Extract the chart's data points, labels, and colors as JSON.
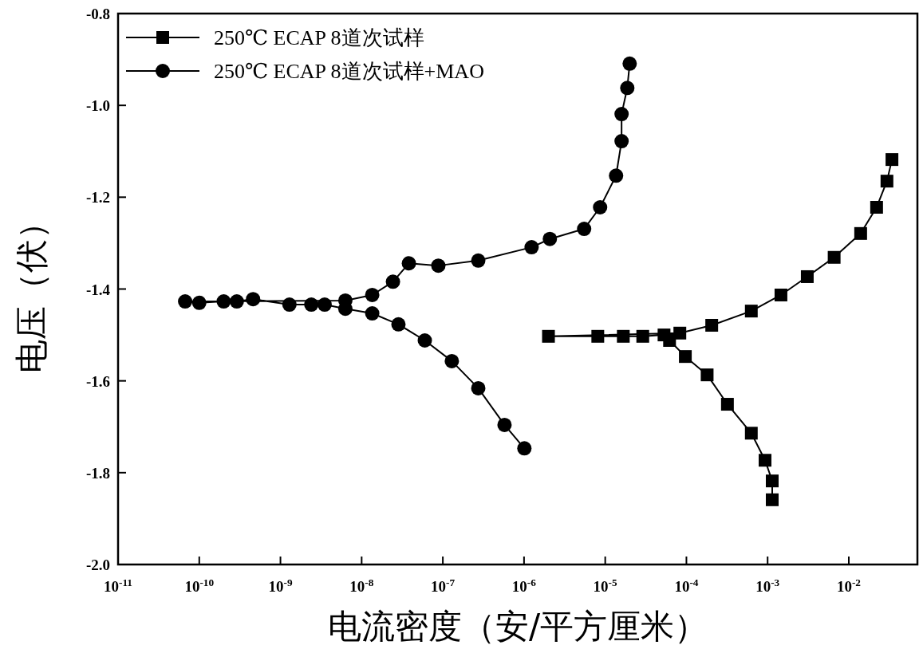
{
  "chart_data": {
    "type": "line",
    "xlabel": "电流密度（安/平方厘米）",
    "ylabel": "电压（伏）",
    "log": "x",
    "legend": "top left",
    "line_style": "solid",
    "xlim": [
      1e-11,
      0.07
    ],
    "ylim": [
      -2.0,
      -0.8
    ],
    "xticks": [
      {
        "value": 1e-11,
        "label": "10$^{-11}$"
      },
      {
        "value": 1e-10,
        "label": "10$^{-10}$"
      },
      {
        "value": 1e-09,
        "label": "10$^{-9}$"
      },
      {
        "value": 1e-08,
        "label": "10$^{-8}$"
      },
      {
        "value": 1e-07,
        "label": "10$^{-7}$"
      },
      {
        "value": 1e-06,
        "label": "10$^{-6}$"
      },
      {
        "value": 1e-05,
        "label": "10$^{-5}$"
      },
      {
        "value": 0.0001,
        "label": "10$^{-4}$"
      },
      {
        "value": 0.001,
        "label": "10$^{-3}$"
      },
      {
        "value": 0.01,
        "label": "10$^{-2}$"
      }
    ],
    "yticks": [
      {
        "value": -2.0,
        "label": "-2.0"
      },
      {
        "value": -1.8,
        "label": "-1.8"
      },
      {
        "value": -1.6,
        "label": "-1.6"
      },
      {
        "value": -1.4,
        "label": "-1.4"
      },
      {
        "value": -1.2,
        "label": "-1.2"
      },
      {
        "value": -1.0,
        "label": "-1.0"
      },
      {
        "value": -0.8,
        "label": "-0.8"
      }
    ],
    "series": [
      {
        "name": "250℃ ECAP 8道次试样",
        "color": "#000000",
        "marker": "square",
        "x": [
          0.00114,
          0.00114,
          0.00093,
          0.00063,
          0.00032,
          0.00018,
          9.7e-05,
          6.2e-05,
          5.3e-05,
          2.9e-05,
          1.67e-05,
          8.1e-06,
          2e-06,
          8.3e-05,
          0.000205,
          0.00063,
          0.00146,
          0.00308,
          0.0066,
          0.014,
          0.022,
          0.0295,
          0.034
        ],
        "values": [
          -1.859,
          -1.818,
          -1.773,
          -1.714,
          -1.651,
          -1.587,
          -1.547,
          -1.512,
          -1.5,
          -1.503,
          -1.503,
          -1.503,
          -1.503,
          -1.496,
          -1.479,
          -1.448,
          -1.413,
          -1.373,
          -1.331,
          -1.279,
          -1.222,
          -1.165,
          -1.118
        ]
      },
      {
        "name": "250℃ ECAP 8道次试样+MAO",
        "color": "#000000",
        "marker": "circle",
        "x": [
          1.01e-06,
          5.75e-07,
          2.73e-07,
          1.29e-07,
          6e-08,
          2.84e-08,
          1.35e-08,
          6.3e-09,
          3.5e-09,
          2.4e-09,
          1.29e-09,
          4.6e-10,
          2.9e-10,
          2e-10,
          1e-10,
          6.7e-11,
          6.3e-09,
          1.35e-08,
          2.43e-08,
          3.82e-08,
          8.8e-08,
          2.73e-07,
          1.24e-06,
          2.08e-06,
          5.5e-06,
          8.65e-06,
          1.36e-05,
          1.59e-05,
          1.59e-05,
          1.87e-05,
          2e-05
        ],
        "values": [
          -1.747,
          -1.696,
          -1.616,
          -1.557,
          -1.512,
          -1.477,
          -1.453,
          -1.443,
          -1.434,
          -1.434,
          -1.434,
          -1.422,
          -1.427,
          -1.427,
          -1.43,
          -1.427,
          -1.425,
          -1.413,
          -1.384,
          -1.344,
          -1.349,
          -1.338,
          -1.309,
          -1.291,
          -1.269,
          -1.222,
          -1.153,
          -1.078,
          -1.019,
          -0.962,
          -0.909
        ]
      }
    ]
  }
}
